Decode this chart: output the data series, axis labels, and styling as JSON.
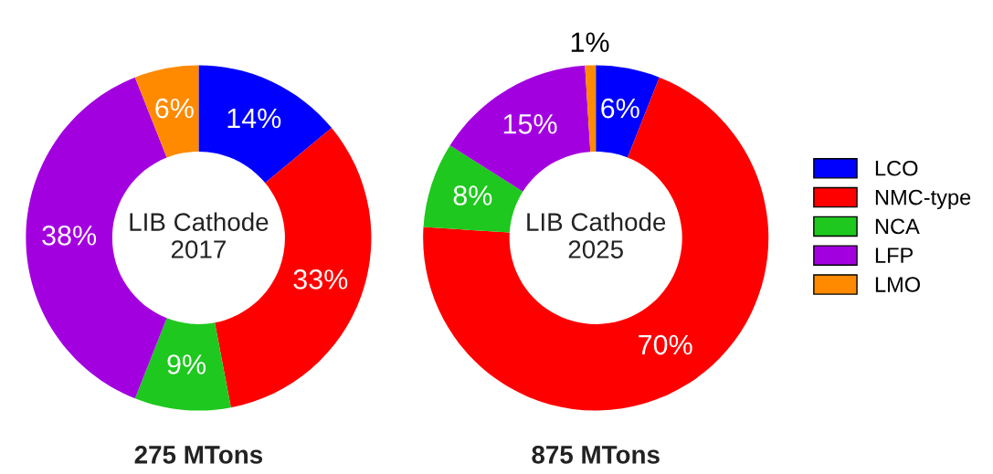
{
  "chart_data": [
    {
      "type": "donut",
      "title": "LIB Cathode\n2017",
      "xlabel": "275 MTons",
      "categories": [
        "LCO",
        "NMC-type",
        "NCA",
        "LFP",
        "LMO"
      ],
      "values": [
        14,
        33,
        9,
        38,
        6
      ],
      "value_labels": [
        "14%",
        "33%",
        "9%",
        "38%",
        "6%"
      ],
      "colors": [
        "#0000ff",
        "#ff0000",
        "#1ec81e",
        "#a300e0",
        "#ff8a00"
      ],
      "legend": "right"
    },
    {
      "type": "donut",
      "title": "LIB Cathode\n2025",
      "xlabel": "875 MTons",
      "categories": [
        null,
        null,
        null,
        null,
        null
      ],
      "values": [
        6,
        70,
        8,
        15,
        1
      ],
      "value_labels": [
        "6%",
        "70%",
        "8%",
        "15%",
        "1%"
      ],
      "colors": [
        "#0000ff",
        "#ff0000",
        "#1ec81e",
        "#a300e0",
        "#ff8a00"
      ]
    }
  ]
}
